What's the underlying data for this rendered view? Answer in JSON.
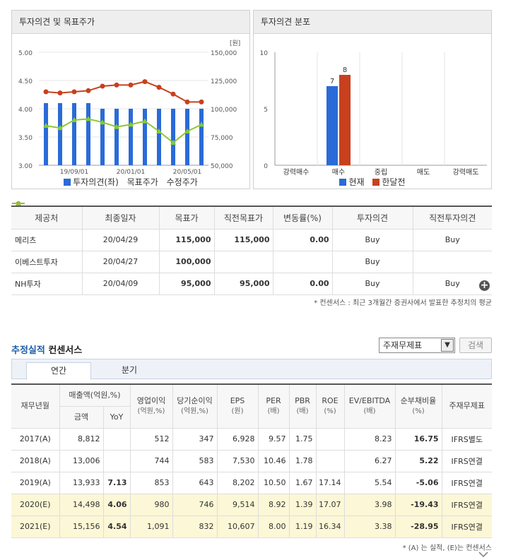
{
  "opinion_chart": {
    "title": "투자의견 및 목표주가",
    "y_left_ticks": [
      "5.00",
      "4.50",
      "4.00",
      "3.50",
      "3.00"
    ],
    "y_right_ticks": [
      "150,000",
      "125,000",
      "100,000",
      "75,000",
      "50,000"
    ],
    "y_right_unit": "[원]",
    "x_ticks": [
      "19/09/01",
      "20/01/01",
      "20/05/01"
    ],
    "legend": [
      "투자의견(좌)",
      "목표주가",
      "수정주가"
    ],
    "colors": {
      "bar": "#2a6bd8",
      "target": "#c8401e",
      "price": "#8cc832"
    }
  },
  "chart_data": [
    {
      "type": "bar+line",
      "title": "투자의견 및 목표주가",
      "ylim_left": [
        3.0,
        5.0
      ],
      "ylim_right": [
        50000,
        150000
      ],
      "series": [
        {
          "name": "투자의견(좌)",
          "values": [
            4.1,
            4.1,
            4.1,
            4.1,
            4.0,
            4.0,
            4.0,
            4.0,
            4.0,
            4.0,
            4.0,
            4.0
          ]
        },
        {
          "name": "목표주가",
          "values": [
            115000,
            114000,
            115000,
            116000,
            120000,
            121000,
            121000,
            124000,
            119000,
            113000,
            106000,
            106000
          ]
        },
        {
          "name": "수정주가",
          "values": [
            85000,
            83000,
            90000,
            91000,
            88000,
            84000,
            86000,
            89000,
            80000,
            70000,
            80000,
            86000
          ]
        }
      ]
    },
    {
      "type": "bar",
      "title": "투자의견 분포",
      "categories": [
        "강력매수",
        "매수",
        "중립",
        "매도",
        "강력매도"
      ],
      "ylim": [
        0,
        10
      ],
      "y_ticks": [
        "10",
        "5",
        "0"
      ],
      "series": [
        {
          "name": "현재",
          "values": [
            0,
            7,
            0,
            0,
            0
          ]
        },
        {
          "name": "한달전",
          "values": [
            0,
            8,
            0,
            0,
            0
          ]
        }
      ]
    }
  ],
  "dist_chart": {
    "title": "투자의견 분포",
    "legend": [
      "현재",
      "한달전"
    ],
    "labels": [
      "7",
      "8"
    ],
    "colors": {
      "current": "#2a6bd8",
      "month_ago": "#c8401e"
    }
  },
  "broker_table": {
    "headers": [
      "제공처",
      "최종일자",
      "목표가",
      "직전목표가",
      "변동률(%)",
      "투자의견",
      "직전투자의견"
    ],
    "rows": [
      [
        "메리츠",
        "20/04/29",
        "115,000",
        "115,000",
        "0.00",
        "Buy",
        "Buy"
      ],
      [
        "이베스트투자",
        "20/04/27",
        "100,000",
        "",
        "",
        "Buy",
        ""
      ],
      [
        "NH투자",
        "20/04/09",
        "95,000",
        "95,000",
        "0.00",
        "Buy",
        "Buy"
      ]
    ],
    "note": "* 컨센서스 : 최근 3개월간 증권사에서 발표한 추정치의 평균"
  },
  "consensus": {
    "title_highlight": "추정실적",
    "title_rest": " 컨센서스",
    "select_value": "주재무제표",
    "search_label": "검색",
    "tabs": [
      "연간",
      "분기"
    ],
    "headers": {
      "year": "재무년월",
      "sales": "매출액(억원,%)",
      "sales_amount": "금액",
      "sales_yoy": "YoY",
      "op": "영업이익",
      "op_unit": "(억원,%)",
      "net": "당기순이익",
      "net_unit": "(억원,%)",
      "eps": "EPS",
      "eps_unit": "(원)",
      "per": "PER",
      "per_unit": "(배)",
      "pbr": "PBR",
      "pbr_unit": "(배)",
      "roe": "ROE",
      "roe_unit": "(%)",
      "ev": "EV/EBITDA",
      "ev_unit": "(배)",
      "debt": "순부채비율",
      "debt_unit": "(%)",
      "fs": "주재무제표"
    },
    "rows": [
      [
        "2017(A)",
        "8,812",
        "",
        "512",
        "347",
        "6,928",
        "9.57",
        "1.75",
        "",
        "8.23",
        "16.75",
        "IFRS별도"
      ],
      [
        "2018(A)",
        "13,006",
        "",
        "744",
        "583",
        "7,530",
        "10.46",
        "1.78",
        "",
        "6.27",
        "5.22",
        "IFRS연결"
      ],
      [
        "2019(A)",
        "13,933",
        "7.13",
        "853",
        "643",
        "8,202",
        "10.50",
        "1.67",
        "17.14",
        "5.54",
        "-5.06",
        "IFRS연결"
      ],
      [
        "2020(E)",
        "14,498",
        "4.06",
        "980",
        "746",
        "9,514",
        "8.92",
        "1.39",
        "17.07",
        "3.98",
        "-19.43",
        "IFRS연결"
      ],
      [
        "2021(E)",
        "15,156",
        "4.54",
        "1,091",
        "832",
        "10,607",
        "8.00",
        "1.19",
        "16.34",
        "3.38",
        "-28.95",
        "IFRS연결"
      ]
    ],
    "note": "* (A) 는 실적, (E)는 컨센서스"
  }
}
